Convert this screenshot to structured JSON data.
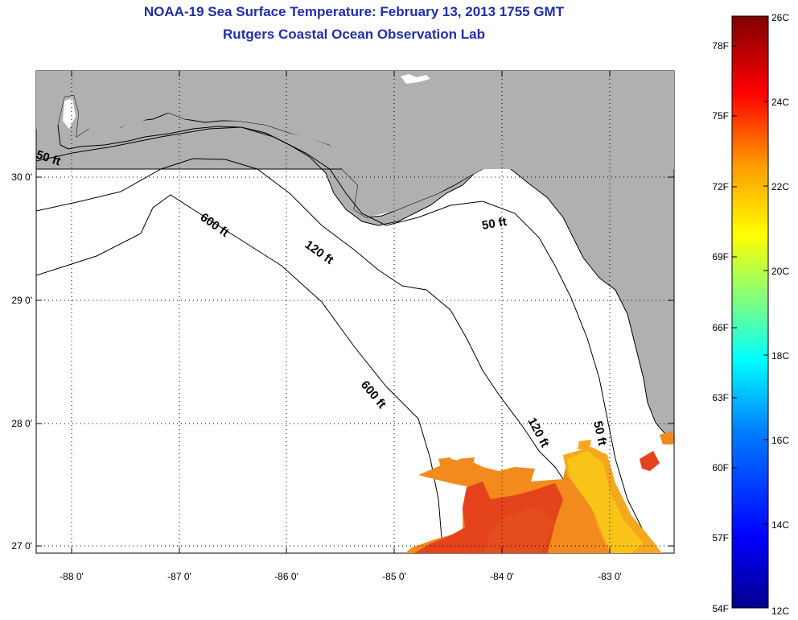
{
  "header": {
    "title": "NOAA-19 Sea Surface Temperature:  February 13, 2013 1755 GMT",
    "subtitle": "Rutgers Coastal Ocean Observation Lab"
  },
  "map": {
    "longitude_labels": [
      "-88 0'",
      "-87 0'",
      "-86 0'",
      "-85 0'",
      "-84 0'",
      "-83 0'"
    ],
    "latitude_labels": [
      "30 0'",
      "29 0'",
      "28 0'",
      "27 0'"
    ],
    "contour_labels": [
      "50 ft",
      "600 ft",
      "120 ft",
      "50 ft",
      "600 ft",
      "120 ft",
      "50 ft"
    ],
    "colors": {
      "land": "#b0b0b0",
      "water": "#ffffff",
      "sst_warm": "#f5a623",
      "sst_hot": "#e4421e"
    }
  },
  "colorbar": {
    "fahrenheit_labels": [
      "78F",
      "75F",
      "72F",
      "69F",
      "66F",
      "63F",
      "60F",
      "57F",
      "54F"
    ],
    "celsius_labels": [
      "26C",
      "24C",
      "22C",
      "20C",
      "18C",
      "16C",
      "14C",
      "12C"
    ],
    "colormap": [
      "#00008f",
      "#0000ff",
      "#007fff",
      "#00ffff",
      "#7fff7f",
      "#ffff00",
      "#ff7f00",
      "#ff0000",
      "#7f0000"
    ]
  }
}
